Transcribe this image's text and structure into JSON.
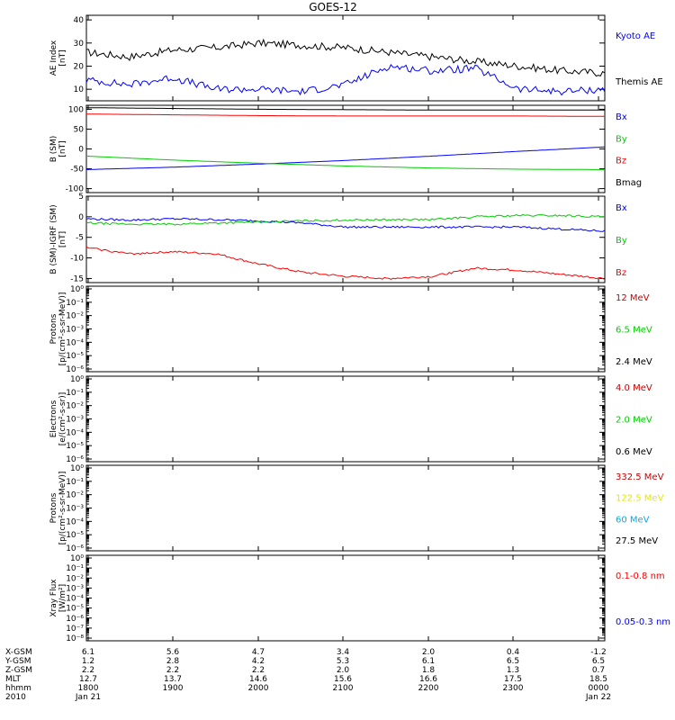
{
  "title": "GOES-12",
  "x_ticks": [
    "1800",
    "1900",
    "2000",
    "2100",
    "2200",
    "2300",
    "0000"
  ],
  "panels": [
    {
      "id": "ae",
      "ylabel": [
        "AE Index",
        "[nT]"
      ],
      "ytick_labels": [
        "10",
        "20",
        "30",
        "40"
      ],
      "yrange": [
        5,
        42
      ],
      "log": false,
      "legend": [
        {
          "label": "Kyoto AE",
          "color": "#0000ff"
        },
        {
          "label": "Themis AE",
          "color": "#000000"
        }
      ]
    },
    {
      "id": "bfield",
      "ylabel": [
        "B (SM)",
        "[nT]"
      ],
      "ytick_labels": [
        "-100",
        "-50",
        "0",
        "50",
        "100"
      ],
      "yrange": [
        -110,
        110
      ],
      "log": false,
      "legend": [
        {
          "label": "Bx",
          "color": "#0000ff"
        },
        {
          "label": "By",
          "color": "#00cc00"
        },
        {
          "label": "Bz",
          "color": "#ff0000"
        },
        {
          "label": "Bmag",
          "color": "#000000"
        }
      ]
    },
    {
      "id": "bdiff",
      "ylabel": [
        "B (SM)-IGRF (SM)",
        "[nT]"
      ],
      "ytick_labels": [
        "-15",
        "-10",
        "-5",
        "0",
        "5"
      ],
      "yrange": [
        -16,
        5
      ],
      "log": false,
      "legend": [
        {
          "label": "Bx",
          "color": "#0000ff"
        },
        {
          "label": "By",
          "color": "#00cc00"
        },
        {
          "label": "Bz",
          "color": "#ff0000"
        }
      ]
    },
    {
      "id": "protons1",
      "ylabel": [
        "Protons",
        "[p/(cm²-s-sr-MeV)]"
      ],
      "ytick_labels": [
        "10⁻⁶",
        "10⁻⁵",
        "10⁻⁴",
        "10⁻³",
        "10⁻²",
        "10⁻¹",
        "10⁰"
      ],
      "log": true,
      "legend": [
        {
          "label": "12 MeV",
          "color": "#cc0000"
        },
        {
          "label": "6.5 MeV",
          "color": "#00cc00"
        },
        {
          "label": "2.4 MeV",
          "color": "#000000"
        }
      ]
    },
    {
      "id": "electrons",
      "ylabel": [
        "Electrons",
        "[e/(cm²-s-sr)]"
      ],
      "ytick_labels": [
        "10⁻⁶",
        "10⁻⁵",
        "10⁻⁴",
        "10⁻³",
        "10⁻²",
        "10⁻¹",
        "10⁰"
      ],
      "log": true,
      "legend": [
        {
          "label": "4.0 MeV",
          "color": "#cc0000"
        },
        {
          "label": "2.0 MeV",
          "color": "#00cc00"
        },
        {
          "label": "0.6 MeV",
          "color": "#000000"
        }
      ]
    },
    {
      "id": "protons2",
      "ylabel": [
        "Protons",
        "[p/(cm²-s-sr-MeV)]"
      ],
      "ytick_labels": [
        "10⁻⁶",
        "10⁻⁵",
        "10⁻⁴",
        "10⁻³",
        "10⁻²",
        "10⁻¹",
        "10⁰"
      ],
      "log": true,
      "legend": [
        {
          "label": "332.5 MeV",
          "color": "#cc0000"
        },
        {
          "label": "122.5 MeV",
          "color": "#e6e600"
        },
        {
          "label": "60 MeV",
          "color": "#00aaee"
        },
        {
          "label": "27.5 MeV",
          "color": "#000000"
        }
      ]
    },
    {
      "id": "xray",
      "ylabel": [
        "Xray Flux",
        "[W/m²]"
      ],
      "ytick_labels": [
        "10⁻⁸",
        "10⁻⁷",
        "10⁻⁶",
        "10⁻⁵",
        "10⁻⁴",
        "10⁻³",
        "10⁻²",
        "10⁻¹",
        "10⁰"
      ],
      "log": true,
      "legend": [
        {
          "label": "0.1-0.8 nm",
          "color": "#ff0000"
        },
        {
          "label": "0.05-0.3 nm",
          "color": "#0000ff"
        }
      ]
    }
  ],
  "ephemeris": [
    {
      "label": "X-GSM",
      "values": [
        "6.1",
        "5.6",
        "4.7",
        "3.4",
        "2.0",
        "0.4",
        "-1.2"
      ]
    },
    {
      "label": "Y-GSM",
      "values": [
        "1.2",
        "2.8",
        "4.2",
        "5.3",
        "6.1",
        "6.5",
        "6.5"
      ]
    },
    {
      "label": "Z-GSM",
      "values": [
        "2.2",
        "2.2",
        "2.2",
        "2.0",
        "1.8",
        "1.3",
        "0.7"
      ]
    },
    {
      "label": "MLT",
      "values": [
        "12.7",
        "13.7",
        "14.6",
        "15.6",
        "16.6",
        "17.5",
        "18.5"
      ]
    },
    {
      "label": "hhmm",
      "values": [
        "1800",
        "1900",
        "2000",
        "2100",
        "2200",
        "2300",
        "0000"
      ]
    },
    {
      "label": "2010",
      "values": [
        "Jan 21",
        "",
        "",
        "",
        "",
        "",
        "Jan 22"
      ]
    }
  ],
  "chart_data": [
    {
      "type": "line",
      "title": "GOES-12",
      "ylabel": "AE Index [nT]",
      "ylim": [
        5,
        42
      ],
      "x": [
        18.0,
        18.5,
        19.0,
        19.5,
        20.0,
        20.5,
        21.0,
        21.5,
        22.0,
        22.5,
        23.0,
        23.5,
        24.0
      ],
      "series": [
        {
          "name": "Themis AE",
          "color": "#000000",
          "values": [
            26,
            24,
            27,
            28,
            30,
            29,
            28,
            26,
            24,
            22,
            20,
            18,
            17
          ]
        },
        {
          "name": "Kyoto AE",
          "color": "#0000ff",
          "values": [
            14,
            12,
            15,
            10,
            10,
            9,
            12,
            20,
            18,
            19,
            10,
            9,
            10
          ]
        }
      ]
    },
    {
      "type": "line",
      "ylabel": "B (SM) [nT]",
      "ylim": [
        -110,
        110
      ],
      "x": [
        18.0,
        19.0,
        20.0,
        21.0,
        22.0,
        23.0,
        24.0
      ],
      "series": [
        {
          "name": "Bx",
          "color": "#0000ff",
          "values": [
            -52,
            -46,
            -38,
            -29,
            -18,
            -6,
            5
          ]
        },
        {
          "name": "By",
          "color": "#00cc00",
          "values": [
            -18,
            -28,
            -36,
            -43,
            -48,
            -51,
            -52
          ]
        },
        {
          "name": "Bz",
          "color": "#ff0000",
          "values": [
            88,
            86,
            84,
            83,
            83,
            83,
            82
          ]
        },
        {
          "name": "Bmag",
          "color": "#000000",
          "values": [
            104,
            102,
            100,
            99,
            98,
            98,
            98
          ]
        }
      ]
    },
    {
      "type": "line",
      "ylabel": "B (SM)-IGRF (SM) [nT]",
      "ylim": [
        -16,
        5
      ],
      "x": [
        18.0,
        18.5,
        19.0,
        19.5,
        20.0,
        20.5,
        21.0,
        21.5,
        22.0,
        22.5,
        23.0,
        23.5,
        24.0
      ],
      "series": [
        {
          "name": "Bx",
          "color": "#0000ff",
          "values": [
            -0.5,
            -0.8,
            -0.5,
            -0.7,
            -1.0,
            -1.5,
            -2.5,
            -2.5,
            -2.5,
            -2.5,
            -2.5,
            -3.0,
            -3.5
          ]
        },
        {
          "name": "By",
          "color": "#00cc00",
          "values": [
            -1.5,
            -1.8,
            -1.8,
            -1.5,
            -1.3,
            -1.0,
            -0.8,
            -0.7,
            -0.7,
            0.0,
            0.3,
            0.3,
            0.0
          ]
        },
        {
          "name": "Bz",
          "color": "#ff0000",
          "values": [
            -7.5,
            -9,
            -8.5,
            -9,
            -11.5,
            -13.5,
            -14.5,
            -15.0,
            -14.5,
            -12.5,
            -13.0,
            -14.0,
            -15.0
          ]
        }
      ]
    }
  ]
}
